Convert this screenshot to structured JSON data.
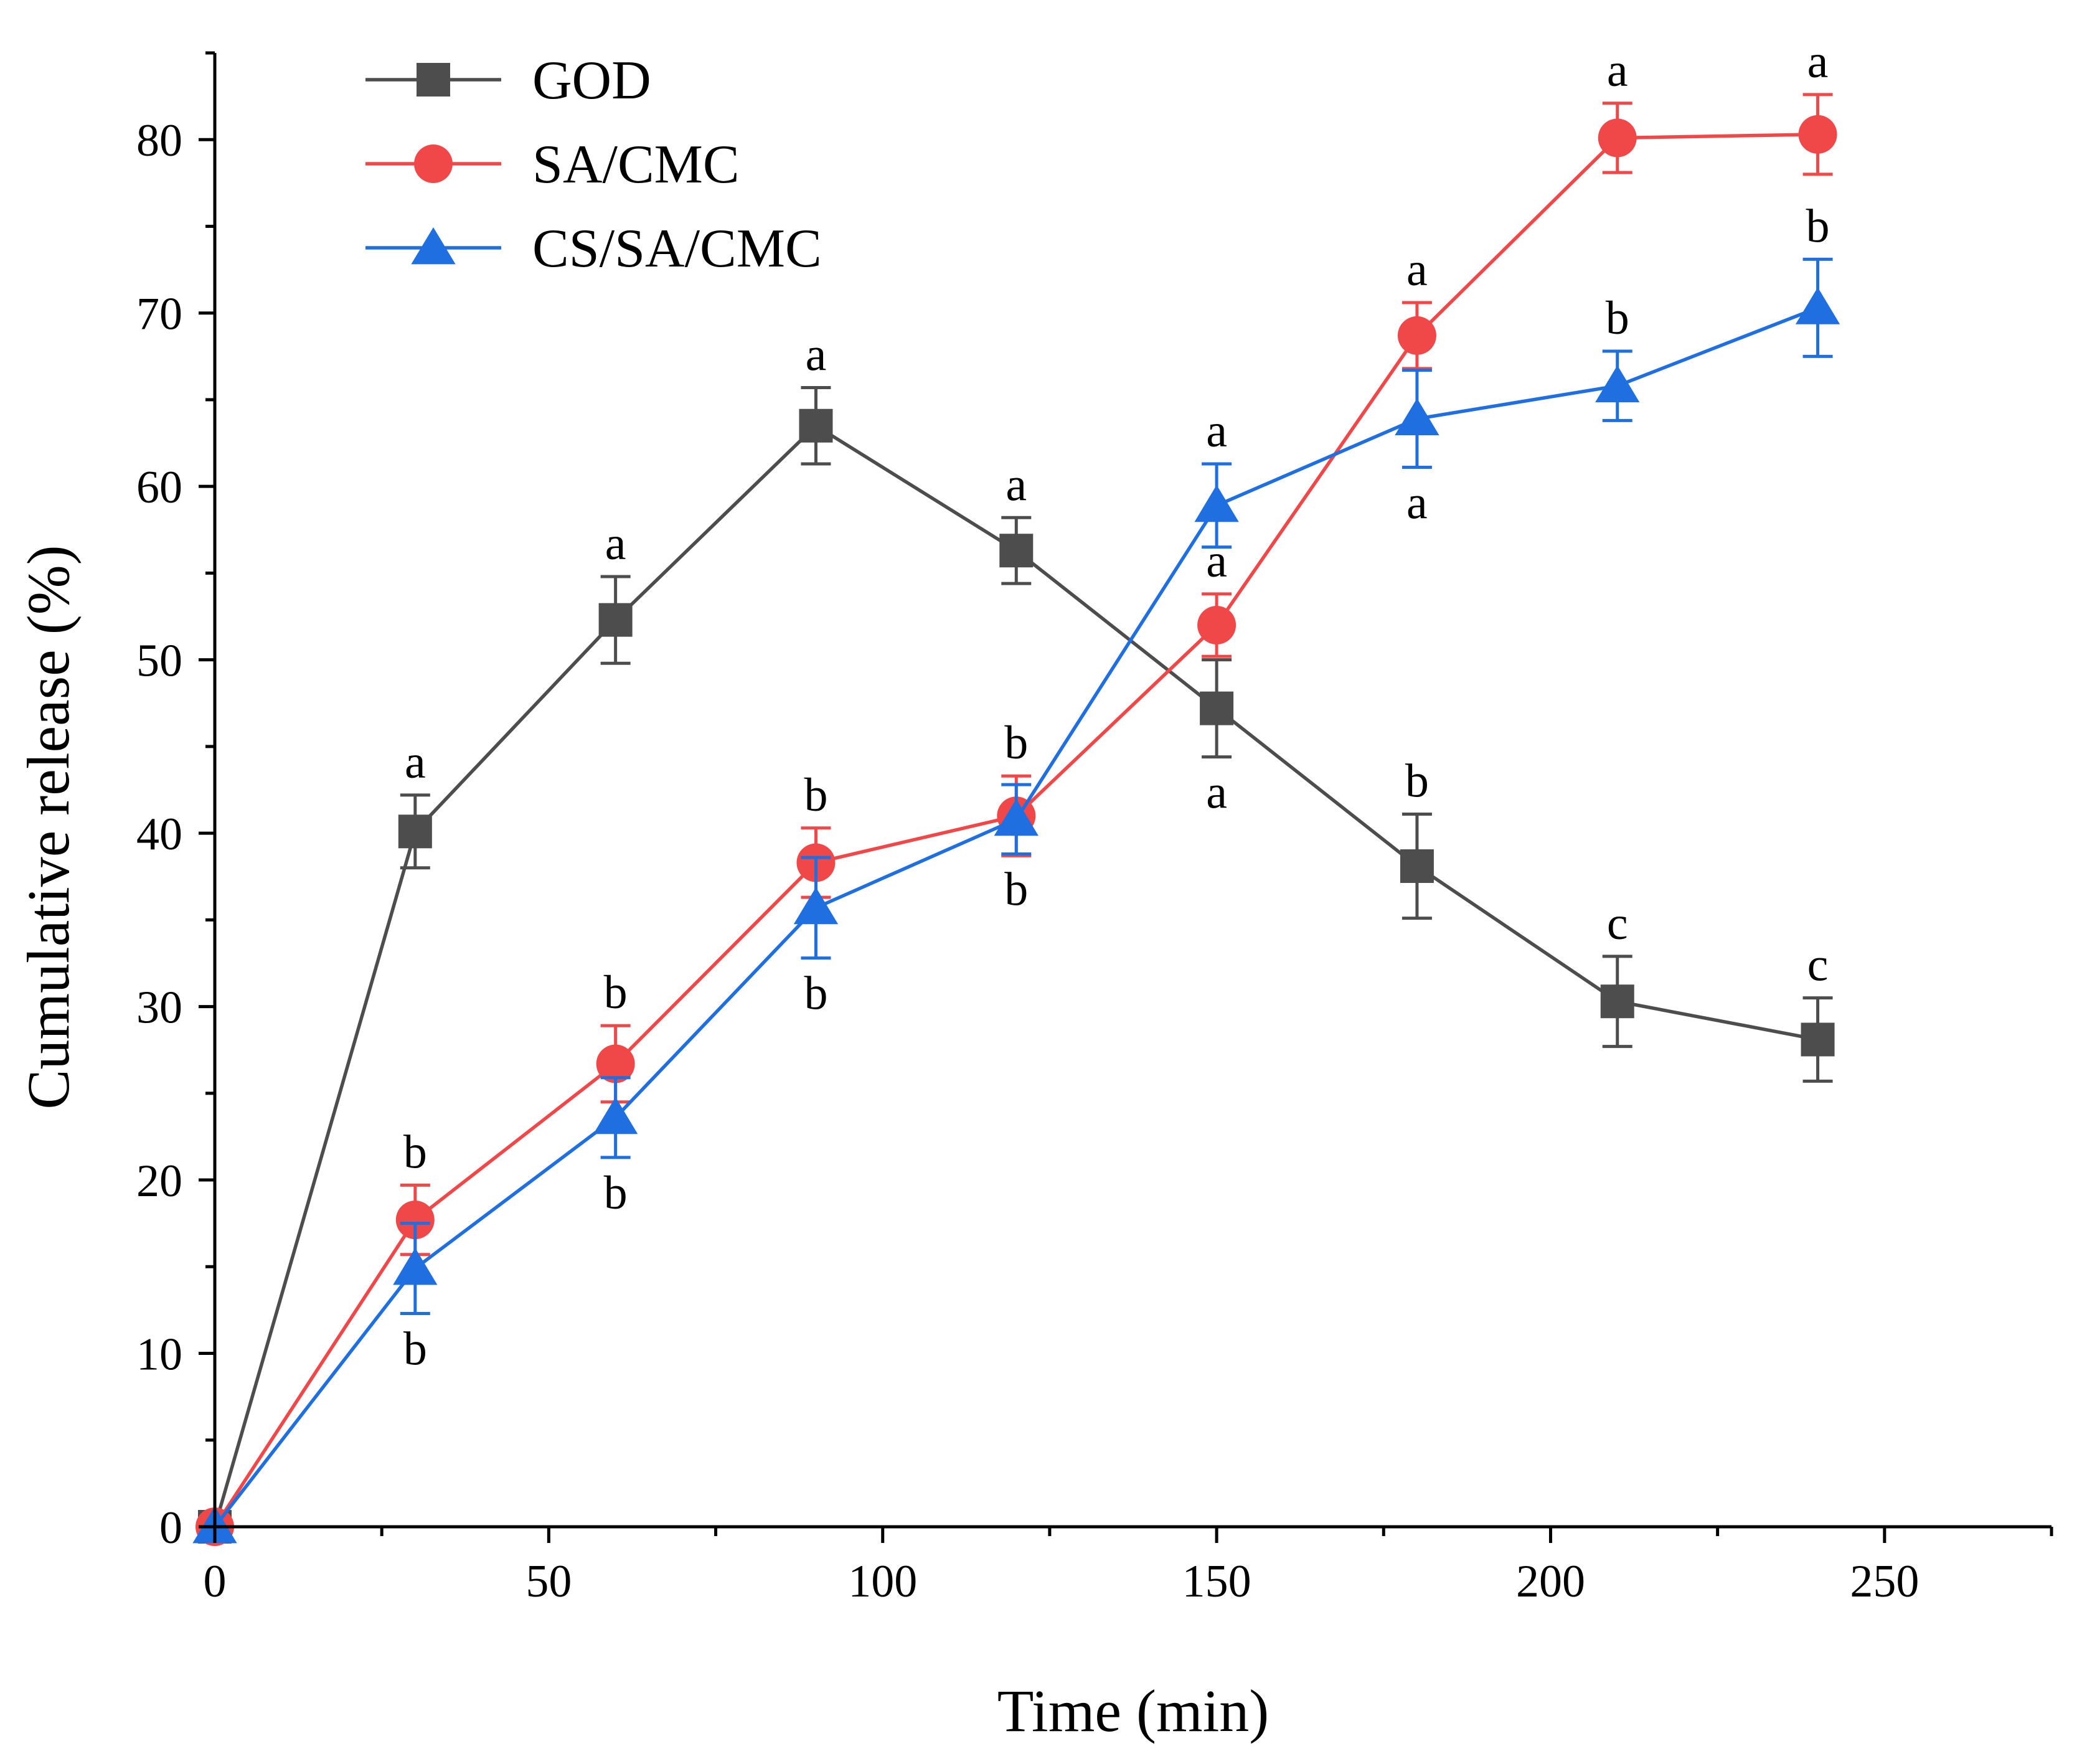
{
  "chart_data": {
    "type": "line",
    "title": "",
    "xlabel": "Time (min)",
    "ylabel": "Cumulative release  (%)",
    "xlim": [
      0,
      275
    ],
    "ylim": [
      0,
      85
    ],
    "xticks": [
      0,
      50,
      100,
      150,
      200,
      250
    ],
    "yticks": [
      0,
      10,
      20,
      30,
      40,
      50,
      60,
      70,
      80
    ],
    "x_minor_step": 25,
    "y_minor_step": 5,
    "grid": false,
    "legend_position": "top-left",
    "series": [
      {
        "name": "GOD",
        "color": "#4d4d4d",
        "marker": "square",
        "x": [
          0,
          30,
          60,
          90,
          120,
          150,
          180,
          210,
          240
        ],
        "values": [
          0,
          40.1,
          52.3,
          63.5,
          56.3,
          47.2,
          38.1,
          30.3,
          28.1
        ],
        "errors": [
          0,
          2.1,
          2.5,
          2.2,
          1.9,
          2.8,
          3.0,
          2.6,
          2.4
        ],
        "labels": [
          "",
          "a",
          "a",
          "a",
          "a",
          "a",
          "b",
          "c",
          "c"
        ],
        "label_positions": [
          "",
          "above",
          "above",
          "above",
          "above",
          "below",
          "above",
          "above",
          "above"
        ]
      },
      {
        "name": "SA/CMC",
        "color": "#f04848",
        "marker": "circle",
        "x": [
          0,
          30,
          60,
          90,
          120,
          150,
          180,
          210,
          240
        ],
        "values": [
          0,
          17.7,
          26.7,
          38.3,
          41.0,
          52.0,
          68.7,
          80.1,
          80.3
        ],
        "errors": [
          0,
          2.0,
          2.2,
          2.0,
          2.3,
          1.8,
          1.9,
          2.0,
          2.3
        ],
        "labels": [
          "",
          "b",
          "b",
          "b",
          "b",
          "a",
          "a",
          "a",
          "a"
        ],
        "label_positions": [
          "",
          "above",
          "above",
          "above",
          "above",
          "above",
          "above",
          "above",
          "above"
        ]
      },
      {
        "name": "CS/SA/CMC",
        "color": "#1f6fe0",
        "marker": "triangle",
        "x": [
          0,
          30,
          60,
          90,
          120,
          150,
          180,
          210,
          240
        ],
        "values": [
          0,
          14.9,
          23.6,
          35.7,
          40.8,
          58.9,
          63.9,
          65.8,
          70.3
        ],
        "errors": [
          0,
          2.6,
          2.3,
          2.9,
          2.0,
          2.4,
          2.8,
          2.0,
          2.8
        ],
        "labels": [
          "",
          "b",
          "b",
          "b",
          "b",
          "a",
          "a",
          "b",
          "b"
        ],
        "label_positions": [
          "",
          "below",
          "below",
          "below",
          "below",
          "above",
          "below",
          "above",
          "above"
        ]
      }
    ]
  }
}
